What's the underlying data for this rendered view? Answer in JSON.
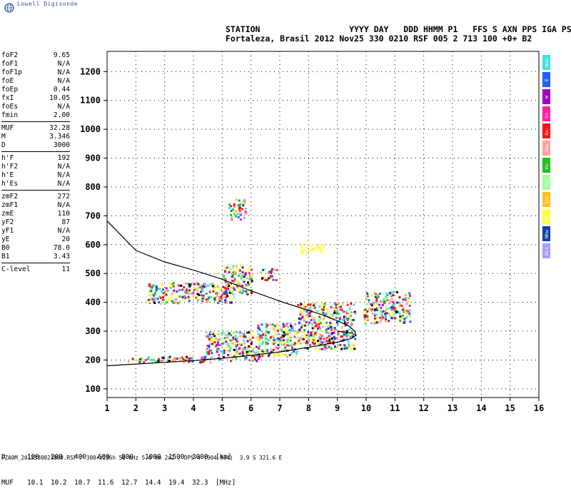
{
  "app": {
    "brand": "Lowell Digisonde"
  },
  "header": {
    "line1": "STATION                  YYYY DAY   DDD HHMM P1   FFS S AXN PPS IGA PS",
    "line2": "Fortaleza, Brasil 2012 Nov25 330 0210 RSF 005 2 713 100 +0+ B2"
  },
  "params": {
    "group1": [
      {
        "label": "foF2",
        "value": "9.65"
      },
      {
        "label": "foF1",
        "value": "N/A"
      },
      {
        "label": "foF1p",
        "value": "N/A"
      },
      {
        "label": "foE",
        "value": "N/A"
      },
      {
        "label": "foEp",
        "value": "0.44"
      },
      {
        "label": "fxI",
        "value": "10.05"
      },
      {
        "label": "foEs",
        "value": "N/A"
      },
      {
        "label": "fmin",
        "value": "2.00"
      }
    ],
    "group2": [
      {
        "label": "MUF",
        "value": "32.28"
      },
      {
        "label": "M",
        "value": "3.346"
      },
      {
        "label": "D",
        "value": "3000"
      }
    ],
    "group3": [
      {
        "label": "h'F",
        "value": "192"
      },
      {
        "label": "h'F2",
        "value": "N/A"
      },
      {
        "label": "h'E",
        "value": "N/A"
      },
      {
        "label": "h'Es",
        "value": "N/A"
      }
    ],
    "group4": [
      {
        "label": "zmF2",
        "value": "272"
      },
      {
        "label": "zmF1",
        "value": "N/A"
      },
      {
        "label": "zmE",
        "value": "110"
      },
      {
        "label": "yF2",
        "value": "87"
      },
      {
        "label": "yF1",
        "value": "N/A"
      },
      {
        "label": "yE",
        "value": "20"
      },
      {
        "label": "B0",
        "value": "78.0"
      },
      {
        "label": "B1",
        "value": "3.43"
      }
    ],
    "group5": [
      {
        "label": "C-level",
        "value": "11"
      }
    ]
  },
  "legend": [
    {
      "label": "Nno",
      "color": "#40e0e0"
    },
    {
      "label": "E",
      "color": "#2060ff"
    },
    {
      "label": "W",
      "color": "#a000c0"
    },
    {
      "label": "Vo-",
      "color": "#ff20a0"
    },
    {
      "label": "Xo-",
      "color": "#ff1010"
    },
    {
      "label": "Ssw",
      "color": "#ffa0a0"
    },
    {
      "label": "Vo-",
      "color": "#20c020"
    },
    {
      "label": "Vo+",
      "color": "#a0ffa0"
    },
    {
      "label": "Sse",
      "color": "#ffc020"
    },
    {
      "label": "Hi-",
      "color": "#ffff40"
    },
    {
      "label": "Nhw",
      "color": "#1040a0"
    },
    {
      "label": "Hi+",
      "color": "#a0a0ff"
    }
  ],
  "distance_table": {
    "d_label": "D",
    "d_values": [
      "100",
      "200",
      "400",
      "600",
      "800",
      "1000",
      "1500",
      "3000"
    ],
    "d_unit": "[km]",
    "muf_label": "MUF",
    "muf_values": [
      "10.1",
      "10.2",
      "10.7",
      "11.6",
      "12.7",
      "14.4",
      "19.4",
      "32.3"
    ],
    "muf_unit": "[MHz]"
  },
  "footer": "FZA0M_2012330021000.RSF / 300+x256h 50 kHz 5.0 km 2x2 / DPS-4 (904-904)  3.9 S 321.6 E",
  "chart_data": {
    "type": "scatter",
    "xlim": [
      1,
      16
    ],
    "ylim": [
      70,
      1270
    ],
    "x_ticks": [
      1,
      2,
      3,
      4,
      5,
      6,
      7,
      8,
      9,
      10,
      11,
      12,
      13,
      14,
      15,
      16
    ],
    "y_ticks": [
      100,
      200,
      300,
      400,
      500,
      600,
      700,
      800,
      900,
      1000,
      1100,
      1200
    ],
    "grid": true,
    "profile_curve": {
      "name": "",
      "x": [
        9.65,
        9.6,
        9.4,
        9.0,
        8.5,
        8.0,
        7.0,
        6.0,
        5.0,
        4.0,
        3.0,
        2.0,
        1.0
      ],
      "y": [
        285,
        300,
        318,
        336,
        356,
        372,
        404,
        440,
        480,
        512,
        540,
        580,
        682
      ]
    },
    "trace_curve": {
      "name": "",
      "x": [
        1.0,
        2.0,
        3.0,
        4.0,
        5.0,
        6.0,
        7.0,
        8.0,
        9.0,
        9.5,
        9.65,
        9.5,
        9.0
      ],
      "y": [
        180,
        186,
        192,
        198,
        206,
        216,
        228,
        244,
        262,
        275,
        285,
        293,
        300
      ]
    },
    "echo_clusters": [
      {
        "x": [
          1.7,
          4.6
        ],
        "y": [
          195,
          215
        ],
        "color": "mixed"
      },
      {
        "x": [
          4.4,
          6.3
        ],
        "y": [
          200,
          300
        ],
        "color": "mixed"
      },
      {
        "x": [
          6.2,
          7.6
        ],
        "y": [
          215,
          330
        ],
        "color": "mixed"
      },
      {
        "x": [
          7.6,
          9.6
        ],
        "y": [
          240,
          400
        ],
        "color": "mixed"
      },
      {
        "x": [
          2.4,
          5.4
        ],
        "y": [
          400,
          470
        ],
        "color": "mixed"
      },
      {
        "x": [
          5.0,
          6.0
        ],
        "y": [
          430,
          530
        ],
        "color": "mixed"
      },
      {
        "x": [
          6.3,
          6.9
        ],
        "y": [
          480,
          520
        ],
        "color": "mixed"
      },
      {
        "x": [
          5.2,
          5.8
        ],
        "y": [
          690,
          760
        ],
        "color": "mixed"
      },
      {
        "x": [
          9.9,
          11.5
        ],
        "y": [
          330,
          440
        ],
        "color": "mixed"
      },
      {
        "x": [
          7.7,
          8.5
        ],
        "y": [
          575,
          605
        ],
        "color": "yellow"
      }
    ]
  }
}
